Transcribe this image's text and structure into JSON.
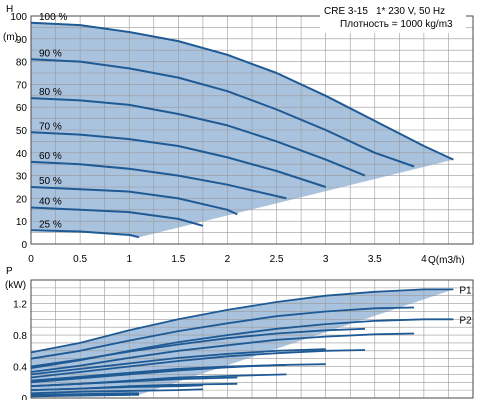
{
  "colors": {
    "curve": "#1f5a94",
    "fill": "#a9c3de",
    "grid": "#9a9a9a",
    "frame": "#4a4a4a"
  },
  "info_box": {
    "model": "CRE 3-15",
    "supply": "1* 230 V, 50 Hz",
    "density": "Плотность = 1000 kg/m3"
  },
  "chart_data": [
    {
      "type": "line",
      "panel": "head",
      "ylabel": "H",
      "yunit": "(m)",
      "xlabel": "Q(m3/h)",
      "xlim": [
        0,
        4.5
      ],
      "ylim": [
        0,
        100
      ],
      "xticks": [
        "0",
        "0.5",
        "1",
        "1.5",
        "2",
        "2.5",
        "3",
        "3.5",
        "4"
      ],
      "yticks": [
        "0",
        "10",
        "20",
        "30",
        "40",
        "50",
        "60",
        "70",
        "80",
        "90",
        "100"
      ],
      "grid": true,
      "series": [
        {
          "name": "100 %",
          "x": [
            0,
            0.5,
            1.0,
            1.5,
            2.0,
            2.5,
            3.0,
            3.5,
            4.0,
            4.3
          ],
          "y": [
            97,
            96,
            93,
            89,
            83,
            75,
            65,
            54,
            43,
            37
          ]
        },
        {
          "name": "90 %",
          "x": [
            0,
            0.5,
            1.0,
            1.5,
            2.0,
            2.5,
            3.0,
            3.5,
            3.9
          ],
          "y": [
            81,
            80,
            77,
            73,
            67,
            59,
            50,
            40,
            34
          ]
        },
        {
          "name": "80 %",
          "x": [
            0,
            0.5,
            1.0,
            1.5,
            2.0,
            2.5,
            3.0,
            3.4
          ],
          "y": [
            64,
            63,
            61,
            57,
            52,
            45,
            37,
            30
          ]
        },
        {
          "name": "70 %",
          "x": [
            0,
            0.5,
            1.0,
            1.5,
            2.0,
            2.5,
            3.0
          ],
          "y": [
            49,
            48,
            46,
            43,
            38,
            32,
            25
          ]
        },
        {
          "name": "60 %",
          "x": [
            0,
            0.5,
            1.0,
            1.5,
            2.0,
            2.6
          ],
          "y": [
            36,
            35,
            33,
            30,
            26,
            20
          ]
        },
        {
          "name": "50 %",
          "x": [
            0,
            0.5,
            1.0,
            1.5,
            2.0,
            2.1
          ],
          "y": [
            25,
            24,
            23,
            20,
            15,
            13
          ]
        },
        {
          "name": "40 %",
          "x": [
            0,
            0.5,
            1.0,
            1.5,
            1.75
          ],
          "y": [
            16,
            15,
            14,
            11,
            8
          ]
        },
        {
          "name": "25 %",
          "x": [
            0,
            0.5,
            1.0,
            1.1
          ],
          "y": [
            6,
            5.5,
            4,
            3
          ]
        }
      ]
    },
    {
      "type": "line",
      "panel": "power",
      "ylabel": "P",
      "yunit": "(kW)",
      "xlim": [
        0,
        4.5
      ],
      "ylim": [
        0,
        1.5
      ],
      "yticks": [
        "0",
        "0.4",
        "0.8",
        "1.2"
      ],
      "grid": true,
      "series": [
        {
          "name": "P1",
          "x": [
            0,
            0.5,
            1.0,
            1.5,
            2.0,
            2.5,
            3.0,
            3.5,
            4.0,
            4.3
          ],
          "y": [
            0.58,
            0.7,
            0.86,
            1.0,
            1.12,
            1.22,
            1.3,
            1.35,
            1.38,
            1.38
          ]
        },
        {
          "name": "P2",
          "x": [
            0,
            0.5,
            1.0,
            1.5,
            2.0,
            2.5,
            3.0,
            3.5,
            4.0,
            4.3
          ],
          "y": [
            0.38,
            0.48,
            0.6,
            0.71,
            0.8,
            0.88,
            0.94,
            0.98,
            1.0,
            1.0
          ]
        },
        {
          "x": [
            0,
            0.5,
            1.0,
            1.5,
            2.0,
            2.5,
            3.0,
            3.5,
            3.9
          ],
          "y": [
            0.5,
            0.6,
            0.73,
            0.85,
            0.95,
            1.04,
            1.1,
            1.14,
            1.15
          ]
        },
        {
          "x": [
            0,
            0.5,
            1.0,
            1.5,
            2.0,
            2.5,
            3.0,
            3.5,
            3.9
          ],
          "y": [
            0.33,
            0.41,
            0.51,
            0.6,
            0.67,
            0.74,
            0.78,
            0.81,
            0.82
          ]
        },
        {
          "x": [
            0,
            0.5,
            1.0,
            1.5,
            2.0,
            2.5,
            3.0,
            3.4
          ],
          "y": [
            0.4,
            0.49,
            0.59,
            0.68,
            0.76,
            0.82,
            0.86,
            0.88
          ]
        },
        {
          "x": [
            0,
            0.5,
            1.0,
            1.5,
            2.0,
            2.5,
            3.0,
            3.4
          ],
          "y": [
            0.26,
            0.33,
            0.4,
            0.47,
            0.53,
            0.57,
            0.6,
            0.61
          ]
        },
        {
          "x": [
            0,
            0.5,
            1.0,
            1.5,
            2.0,
            2.5,
            3.0
          ],
          "y": [
            0.3,
            0.37,
            0.44,
            0.51,
            0.56,
            0.6,
            0.62
          ]
        },
        {
          "x": [
            0,
            0.5,
            1.0,
            1.5,
            2.0,
            2.5,
            3.0
          ],
          "y": [
            0.2,
            0.25,
            0.3,
            0.35,
            0.39,
            0.42,
            0.43
          ]
        },
        {
          "x": [
            0,
            0.5,
            1.0,
            1.5,
            2.0,
            2.6
          ],
          "y": [
            0.22,
            0.27,
            0.32,
            0.37,
            0.4,
            0.42
          ]
        },
        {
          "x": [
            0,
            0.5,
            1.0,
            1.5,
            2.0,
            2.6
          ],
          "y": [
            0.15,
            0.18,
            0.22,
            0.26,
            0.28,
            0.3
          ]
        },
        {
          "x": [
            0,
            0.5,
            1.0,
            1.5,
            2.1
          ],
          "y": [
            0.15,
            0.18,
            0.21,
            0.24,
            0.26
          ]
        },
        {
          "x": [
            0,
            0.5,
            1.0,
            1.5,
            2.1
          ],
          "y": [
            0.1,
            0.12,
            0.15,
            0.17,
            0.18
          ]
        },
        {
          "x": [
            0,
            0.5,
            1.0,
            1.5,
            1.75
          ],
          "y": [
            0.1,
            0.12,
            0.14,
            0.15,
            0.16
          ]
        },
        {
          "x": [
            0,
            0.5,
            1.0,
            1.5,
            1.75
          ],
          "y": [
            0.06,
            0.08,
            0.09,
            0.1,
            0.11
          ]
        },
        {
          "x": [
            0,
            0.5,
            1.0,
            1.1
          ],
          "y": [
            0.04,
            0.05,
            0.06,
            0.06
          ]
        },
        {
          "x": [
            0,
            0.5,
            1.0,
            1.1
          ],
          "y": [
            0.02,
            0.03,
            0.04,
            0.04
          ]
        }
      ]
    }
  ]
}
